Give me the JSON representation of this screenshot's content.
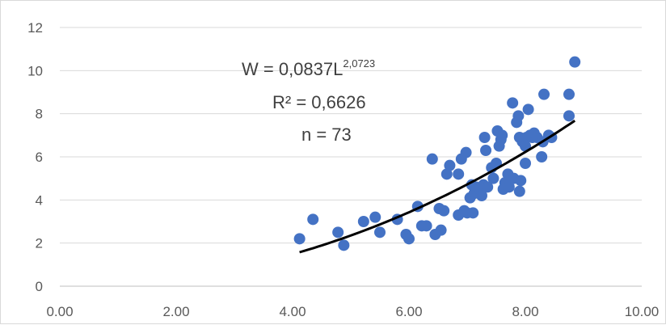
{
  "chart_data": {
    "type": "scatter",
    "title": "",
    "xlabel": "",
    "ylabel": "",
    "xlim": [
      0,
      10
    ],
    "ylim": [
      0,
      12
    ],
    "x_ticks": [
      "0.00",
      "2.00",
      "4.00",
      "6.00",
      "8.00",
      "10.00"
    ],
    "y_ticks": [
      "0",
      "2",
      "4",
      "6",
      "8",
      "10",
      "12"
    ],
    "grid": "horizontal",
    "legend": "none",
    "marker_color": "#4472c4",
    "trend_color": "#000000",
    "trendline": {
      "type": "power",
      "a": 0.0837,
      "b": 2.0723,
      "x_range": [
        4.12,
        8.85
      ]
    },
    "annotation": {
      "eq_base": "W = 0,0837L",
      "eq_exp": "2,0723",
      "r2": "R² = 0,6626",
      "n": "n = 73"
    },
    "points": [
      [
        4.12,
        2.2
      ],
      [
        4.35,
        3.1
      ],
      [
        4.78,
        2.5
      ],
      [
        4.88,
        1.9
      ],
      [
        5.22,
        3.0
      ],
      [
        5.42,
        3.2
      ],
      [
        5.5,
        2.5
      ],
      [
        5.8,
        3.1
      ],
      [
        5.95,
        2.4
      ],
      [
        6.0,
        2.2
      ],
      [
        6.15,
        3.7
      ],
      [
        6.22,
        2.8
      ],
      [
        6.3,
        2.8
      ],
      [
        6.4,
        5.9
      ],
      [
        6.45,
        2.4
      ],
      [
        6.52,
        3.6
      ],
      [
        6.55,
        2.6
      ],
      [
        6.6,
        3.5
      ],
      [
        6.65,
        5.2
      ],
      [
        6.7,
        5.6
      ],
      [
        6.85,
        5.2
      ],
      [
        6.85,
        3.3
      ],
      [
        6.9,
        5.9
      ],
      [
        6.95,
        3.5
      ],
      [
        6.98,
        6.2
      ],
      [
        7.0,
        3.4
      ],
      [
        7.05,
        4.1
      ],
      [
        7.08,
        4.7
      ],
      [
        7.1,
        3.4
      ],
      [
        7.12,
        4.3
      ],
      [
        7.15,
        4.6
      ],
      [
        7.18,
        4.4
      ],
      [
        7.22,
        4.5
      ],
      [
        7.25,
        4.2
      ],
      [
        7.28,
        4.7
      ],
      [
        7.3,
        6.9
      ],
      [
        7.32,
        6.3
      ],
      [
        7.35,
        4.6
      ],
      [
        7.42,
        5.5
      ],
      [
        7.45,
        5.0
      ],
      [
        7.5,
        5.7
      ],
      [
        7.52,
        7.2
      ],
      [
        7.55,
        6.5
      ],
      [
        7.58,
        6.8
      ],
      [
        7.6,
        7.0
      ],
      [
        7.62,
        4.5
      ],
      [
        7.65,
        4.8
      ],
      [
        7.7,
        5.2
      ],
      [
        7.72,
        4.6
      ],
      [
        7.78,
        8.5
      ],
      [
        7.8,
        5.0
      ],
      [
        7.85,
        7.6
      ],
      [
        7.88,
        7.9
      ],
      [
        7.9,
        6.9
      ],
      [
        7.9,
        4.4
      ],
      [
        7.92,
        4.9
      ],
      [
        7.95,
        6.7
      ],
      [
        8.0,
        6.5
      ],
      [
        8.0,
        5.7
      ],
      [
        8.02,
        6.9
      ],
      [
        8.05,
        8.2
      ],
      [
        8.08,
        7.0
      ],
      [
        8.12,
        6.9
      ],
      [
        8.15,
        7.1
      ],
      [
        8.2,
        6.9
      ],
      [
        8.28,
        6.0
      ],
      [
        8.3,
        6.7
      ],
      [
        8.32,
        8.9
      ],
      [
        8.4,
        7.0
      ],
      [
        8.45,
        6.9
      ],
      [
        8.75,
        8.9
      ],
      [
        8.75,
        7.9
      ],
      [
        8.85,
        10.4
      ]
    ]
  }
}
